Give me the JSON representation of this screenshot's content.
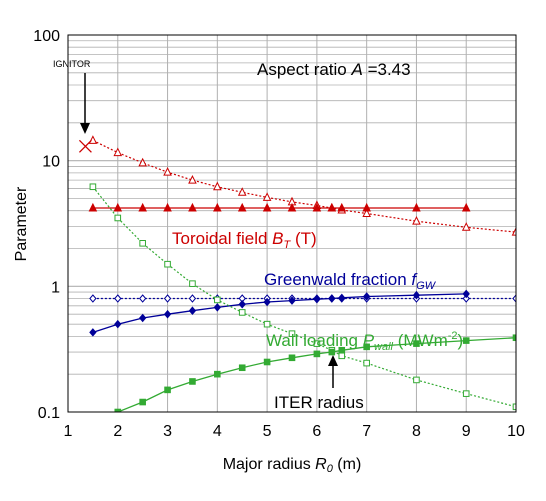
{
  "chart_data": {
    "type": "line",
    "title": "",
    "xlabel_main": "Major radius ",
    "xlabel_sym": "R",
    "xlabel_sub": "0",
    "xlabel_unit": " (m)",
    "ylabel": "Parameter",
    "xlim": [
      1,
      10
    ],
    "ylim": [
      0.1,
      100
    ],
    "y_scale": "log",
    "x_ticks": [
      "1",
      "2",
      "3",
      "4",
      "5",
      "6",
      "7",
      "8",
      "9",
      "10"
    ],
    "y_ticks": [
      {
        "value": 0.1,
        "label": "0.1"
      },
      {
        "value": 1,
        "label": "1"
      },
      {
        "value": 10,
        "label": "10"
      },
      {
        "value": 100,
        "label": "100"
      }
    ],
    "grid": true,
    "series": [
      {
        "key": "bt_upper",
        "color": "#cc0000",
        "style": "dotted",
        "marker": "triangle-open",
        "points": [
          [
            1.5,
            14.5
          ],
          [
            2,
            11.6
          ],
          [
            2.5,
            9.6
          ],
          [
            3,
            8.1
          ],
          [
            3.5,
            7.0
          ],
          [
            4,
            6.2
          ],
          [
            4.5,
            5.6
          ],
          [
            5,
            5.1
          ],
          [
            5.5,
            4.7
          ],
          [
            6,
            4.4
          ],
          [
            6.3,
            4.2
          ],
          [
            6.5,
            4.05
          ],
          [
            7,
            3.8
          ],
          [
            8,
            3.3
          ],
          [
            9,
            2.95
          ],
          [
            10,
            2.7
          ]
        ]
      },
      {
        "key": "bt_flat",
        "color": "#cc0000",
        "style": "solid",
        "marker": "triangle-filled",
        "points": [
          [
            1.5,
            4.2
          ],
          [
            2,
            4.2
          ],
          [
            2.5,
            4.2
          ],
          [
            3,
            4.2
          ],
          [
            3.5,
            4.2
          ],
          [
            4,
            4.2
          ],
          [
            4.5,
            4.2
          ],
          [
            5,
            4.2
          ],
          [
            5.5,
            4.2
          ],
          [
            6,
            4.2
          ],
          [
            6.3,
            4.2
          ],
          [
            6.5,
            4.2
          ],
          [
            7,
            4.2
          ],
          [
            8,
            4.2
          ],
          [
            9,
            4.2
          ]
        ]
      },
      {
        "key": "gw_flat",
        "color": "#000099",
        "style": "dotted",
        "marker": "diamond-open",
        "points": [
          [
            1.5,
            0.8
          ],
          [
            2,
            0.8
          ],
          [
            2.5,
            0.8
          ],
          [
            3,
            0.8
          ],
          [
            3.5,
            0.8
          ],
          [
            4,
            0.8
          ],
          [
            4.5,
            0.8
          ],
          [
            5,
            0.8
          ],
          [
            5.5,
            0.8
          ],
          [
            6,
            0.8
          ],
          [
            6.3,
            0.8
          ],
          [
            6.5,
            0.8
          ],
          [
            7,
            0.8
          ],
          [
            8,
            0.8
          ],
          [
            9,
            0.8
          ],
          [
            10,
            0.8
          ]
        ]
      },
      {
        "key": "gw_rise",
        "color": "#000099",
        "style": "solid",
        "marker": "diamond-filled",
        "points": [
          [
            1.5,
            0.43
          ],
          [
            2,
            0.5
          ],
          [
            2.5,
            0.56
          ],
          [
            3,
            0.6
          ],
          [
            3.5,
            0.64
          ],
          [
            4,
            0.68
          ],
          [
            4.5,
            0.72
          ],
          [
            5,
            0.75
          ],
          [
            5.5,
            0.77
          ],
          [
            6,
            0.79
          ],
          [
            6.3,
            0.8
          ],
          [
            6.5,
            0.81
          ],
          [
            7,
            0.83
          ],
          [
            8,
            0.85
          ],
          [
            9,
            0.87
          ]
        ]
      },
      {
        "key": "wall_fall",
        "color": "#33aa33",
        "style": "dotted",
        "marker": "square-open",
        "points": [
          [
            1.5,
            6.2
          ],
          [
            2,
            3.5
          ],
          [
            2.5,
            2.2
          ],
          [
            3,
            1.5
          ],
          [
            3.5,
            1.05
          ],
          [
            4,
            0.78
          ],
          [
            4.5,
            0.62
          ],
          [
            5,
            0.5
          ],
          [
            5.5,
            0.42
          ],
          [
            6,
            0.35
          ],
          [
            6.3,
            0.31
          ],
          [
            6.5,
            0.28
          ],
          [
            7,
            0.245
          ],
          [
            8,
            0.18
          ],
          [
            9,
            0.14
          ],
          [
            10,
            0.11
          ]
        ]
      },
      {
        "key": "wall_rise",
        "color": "#33aa33",
        "style": "solid",
        "marker": "square-filled",
        "points": [
          [
            1.5,
            0.085
          ],
          [
            2,
            0.1
          ],
          [
            2.5,
            0.12
          ],
          [
            3,
            0.15
          ],
          [
            3.5,
            0.175
          ],
          [
            4,
            0.2
          ],
          [
            4.5,
            0.225
          ],
          [
            5,
            0.25
          ],
          [
            5.5,
            0.27
          ],
          [
            6,
            0.29
          ],
          [
            6.3,
            0.3
          ],
          [
            6.5,
            0.31
          ],
          [
            7,
            0.33
          ],
          [
            8,
            0.35
          ],
          [
            9,
            0.37
          ],
          [
            10,
            0.39
          ]
        ]
      }
    ],
    "annotations": {
      "aspect_main": "Aspect ratio ",
      "aspect_sym": "A",
      "aspect_val": " =3.43",
      "ignitor_label": "IGNITOR",
      "ignitor_point": [
        1.35,
        13
      ],
      "toroidal_main": "Toroidal field ",
      "toroidal_sym": "B",
      "toroidal_sub": "T",
      "toroidal_unit": " (T)",
      "greenwald_main": "Greenwald fraction ",
      "greenwald_sym": "f",
      "greenwald_sub": "GW",
      "wall_main": "Wall loading ",
      "wall_sym": "P",
      "wall_sub": "wall",
      "wall_unit_a": " (MWm",
      "wall_unit_sup": "-2",
      "wall_unit_b": ")",
      "iter_label": "ITER radius",
      "iter_point": [
        6.3,
        0.3
      ]
    },
    "colors": {
      "red": "#cc0000",
      "blue": "#000099",
      "green": "#33aa33",
      "grid": "#b0b0b0",
      "text": "#000000"
    }
  }
}
